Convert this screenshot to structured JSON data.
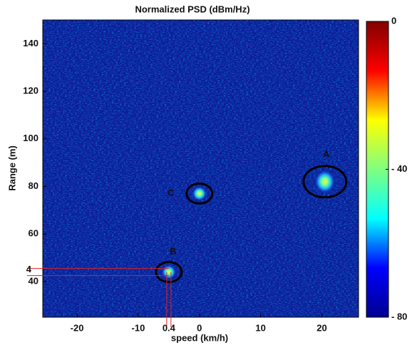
{
  "chart_data": {
    "type": "heatmap",
    "title": "Normalized PSD (dBm/Hz)",
    "xlabel": "speed (km/h)",
    "ylabel": "Range (m)",
    "xlim": [
      -25.6,
      26
    ],
    "xticks": [
      -20,
      -10,
      0,
      10,
      20
    ],
    "ylim": [
      25,
      150
    ],
    "yticks": [
      40,
      60,
      80,
      100,
      120,
      140
    ],
    "colormap": "jet",
    "clim": [
      -80,
      0
    ],
    "cticks": [
      {
        "value": -80,
        "label": "- 80"
      },
      {
        "value": -40,
        "label": "- 40"
      },
      0
    ],
    "targets": [
      {
        "name": "A",
        "x": 20.5,
        "y": 82
      },
      {
        "name": "B",
        "x": -5,
        "y": 44
      },
      {
        "name": "C",
        "x": 0,
        "y": 77
      }
    ],
    "annotations": [
      "4",
      "0.4"
    ]
  }
}
